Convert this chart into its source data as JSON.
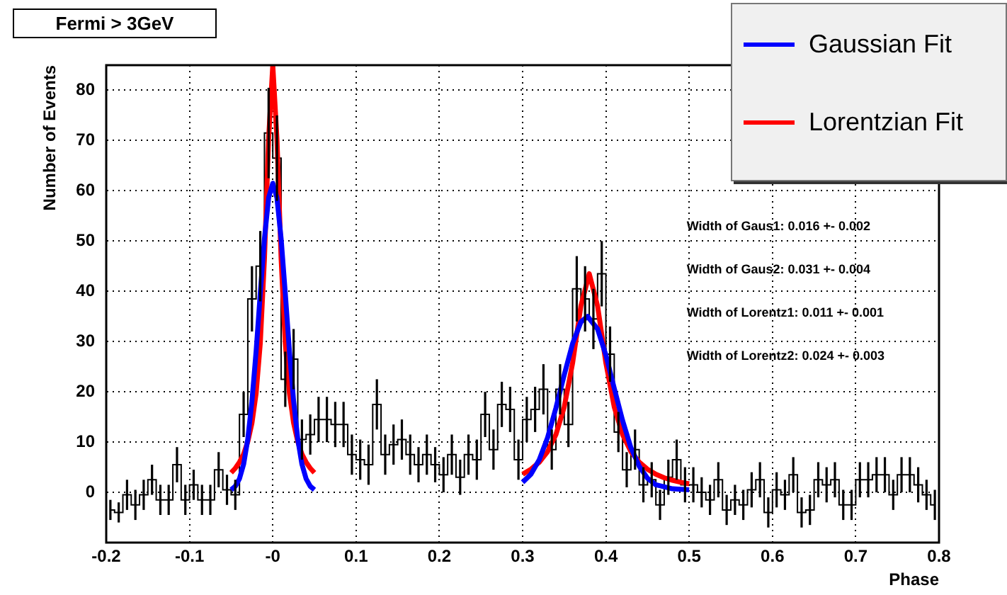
{
  "chart_data": {
    "type": "step",
    "title": "Fermi > 3GeV",
    "xlabel": "Phase",
    "ylabel": "Number of Events",
    "x": [
      -0.195,
      -0.185,
      -0.175,
      -0.165,
      -0.155,
      -0.145,
      -0.135,
      -0.125,
      -0.115,
      -0.105,
      -0.095,
      -0.085,
      -0.075,
      -0.065,
      -0.055,
      -0.045,
      -0.035,
      -0.025,
      -0.015,
      -0.005,
      0.005,
      0.015,
      0.025,
      0.035,
      0.045,
      0.055,
      0.065,
      0.075,
      0.085,
      0.095,
      0.105,
      0.115,
      0.125,
      0.135,
      0.145,
      0.155,
      0.165,
      0.175,
      0.185,
      0.195,
      0.205,
      0.215,
      0.225,
      0.235,
      0.245,
      0.255,
      0.265,
      0.275,
      0.285,
      0.295,
      0.305,
      0.315,
      0.325,
      0.335,
      0.345,
      0.355,
      0.365,
      0.375,
      0.385,
      0.395,
      0.405,
      0.415,
      0.425,
      0.435,
      0.445,
      0.455,
      0.465,
      0.475,
      0.485,
      0.495,
      0.505,
      0.515,
      0.525,
      0.535,
      0.545,
      0.555,
      0.565,
      0.575,
      0.585,
      0.595,
      0.605,
      0.615,
      0.625,
      0.635,
      0.645,
      0.655,
      0.665,
      0.675,
      0.685,
      0.695,
      0.705,
      0.715,
      0.725,
      0.735,
      0.745,
      0.755,
      0.765,
      0.775,
      0.785,
      0.795
    ],
    "values": [
      -3.5,
      -4,
      -0.5,
      -2.5,
      -0.5,
      2.5,
      -1.5,
      -1.5,
      5.5,
      -1.5,
      1.5,
      -1.5,
      -1.5,
      4.5,
      0.5,
      -0.5,
      15.5,
      38.5,
      45,
      71.5,
      66.5,
      22.5,
      26.5,
      10.5,
      11.5,
      14.5,
      14.5,
      13.5,
      13.5,
      7.5,
      6.5,
      5.5,
      17.5,
      7.5,
      9.5,
      10.5,
      7.5,
      5.5,
      7.5,
      5.5,
      3.5,
      7.5,
      3,
      7.5,
      6.5,
      15.5,
      8.5,
      17.5,
      16.5,
      6.5,
      14.5,
      16.5,
      20.5,
      8.5,
      20.5,
      13.5,
      40.5,
      38.5,
      34.5,
      43.5,
      27.5,
      12,
      4.5,
      8.5,
      1.5,
      2.5,
      -2.5,
      3,
      6.5,
      1.5,
      1.5,
      0,
      -1.5,
      2.5,
      -3.5,
      -1.5,
      -2.5,
      0.5,
      2.5,
      -4,
      0.5,
      -0.5,
      3.5,
      -4,
      -3.5,
      2.5,
      1.5,
      2.5,
      -2.5,
      -2.5,
      2.5,
      2.5,
      3.5,
      3.5,
      -0.5,
      3.5,
      3.5,
      1.5,
      -0.5,
      -2.5
    ],
    "errors": [
      2,
      2,
      3,
      3,
      3,
      3,
      3,
      3,
      3.5,
      3,
      3,
      3,
      3,
      3.5,
      3,
      3,
      4.5,
      6.5,
      7,
      9,
      8.5,
      5.5,
      6,
      4,
      4,
      4.5,
      4.5,
      4.5,
      4.5,
      4,
      4,
      4,
      5,
      4,
      4,
      4,
      4,
      3.5,
      4,
      3.5,
      3.5,
      4,
      3.5,
      4,
      4,
      4.5,
      4,
      4.5,
      4.5,
      4,
      4.5,
      4.5,
      5,
      4,
      5,
      4.5,
      6.5,
      6.5,
      6,
      6.5,
      5.5,
      4,
      3.5,
      4,
      3.5,
      3.5,
      3,
      3.5,
      4,
      3.5,
      3.5,
      3,
      3,
      3.5,
      3,
      3,
      3,
      3.5,
      3.5,
      3,
      3.5,
      3,
      3.5,
      3,
      3,
      3.5,
      3.5,
      3.5,
      3,
      3,
      3.5,
      3.5,
      3.5,
      3.5,
      3,
      3.5,
      3.5,
      3.5,
      3,
      3
    ],
    "color": "#000000",
    "series": [
      {
        "name": "Gaussian Fit",
        "type": "line",
        "color": "#0000ff",
        "x": [
          -0.05,
          -0.045,
          -0.04,
          -0.035,
          -0.03,
          -0.025,
          -0.02,
          -0.015,
          -0.01,
          -0.005,
          0,
          0.005,
          0.01,
          0.015,
          0.02,
          0.025,
          0.03,
          0.035,
          0.04,
          0.045,
          0.05,
          0.2,
          0.3,
          0.31,
          0.32,
          0.33,
          0.34,
          0.35,
          0.36,
          0.37,
          0.378,
          0.39,
          0.4,
          0.41,
          0.42,
          0.43,
          0.44,
          0.45,
          0.46,
          0.48,
          0.5
        ],
        "values": [
          0.5,
          1.2,
          2.7,
          5.6,
          10.6,
          18.2,
          28.1,
          39.6,
          50.5,
          58.6,
          61.5,
          58.6,
          50.5,
          39.6,
          28.1,
          18.2,
          10.6,
          5.6,
          2.7,
          1.2,
          0.5,
          null,
          2,
          3.6,
          6.5,
          10.9,
          16.8,
          23.4,
          29.6,
          33.9,
          35,
          32.5,
          27.3,
          20.7,
          14.3,
          8.9,
          5.2,
          2.8,
          1.5,
          0.7,
          0.5
        ]
      },
      {
        "name": "Lorentzian Fit",
        "type": "line",
        "color": "#ff0000",
        "x": [
          -0.05,
          -0.045,
          -0.04,
          -0.035,
          -0.03,
          -0.025,
          -0.02,
          -0.015,
          -0.01,
          -0.005,
          0,
          0.005,
          0.01,
          0.015,
          0.02,
          0.025,
          0.03,
          0.035,
          0.04,
          0.045,
          0.05,
          0.2,
          0.3,
          0.31,
          0.32,
          0.33,
          0.34,
          0.35,
          0.36,
          0.37,
          0.38,
          0.39,
          0.4,
          0.41,
          0.42,
          0.43,
          0.44,
          0.45,
          0.46,
          0.47,
          0.48,
          0.49,
          0.5
        ],
        "values": [
          3.9,
          4.8,
          6,
          7.6,
          10.1,
          13.8,
          19.7,
          29.7,
          46.5,
          70.4,
          85,
          70.4,
          46.5,
          29.7,
          19.7,
          13.8,
          10.1,
          7.6,
          6,
          4.8,
          3.9,
          null,
          3.6,
          4.6,
          6,
          8.1,
          11.5,
          17,
          25.7,
          37.1,
          43.5,
          37.1,
          25.7,
          17,
          11.5,
          8.1,
          6,
          4.6,
          3.6,
          2.9,
          2.4,
          2,
          1.7
        ]
      }
    ],
    "annotations": [
      "Width of Gaus1: 0.016 +- 0.002",
      "Width of Gaus2: 0.031 +- 0.004",
      "Width of Lorentz1: 0.011 +- 0.001",
      "Width of Lorentz2: 0.024 +- 0.003"
    ],
    "xlim": [
      -0.2,
      0.8
    ],
    "xticks": [
      -0.2,
      -0.1,
      {
        "value": 0,
        "label": "-0"
      },
      0.1,
      0.2,
      0.3,
      0.4,
      0.5,
      0.6,
      0.7,
      0.8
    ],
    "ylim": [
      -10,
      85
    ],
    "yticks": [
      0,
      10,
      20,
      30,
      40,
      50,
      60,
      70,
      80
    ],
    "grid": true,
    "legend": "top right"
  }
}
